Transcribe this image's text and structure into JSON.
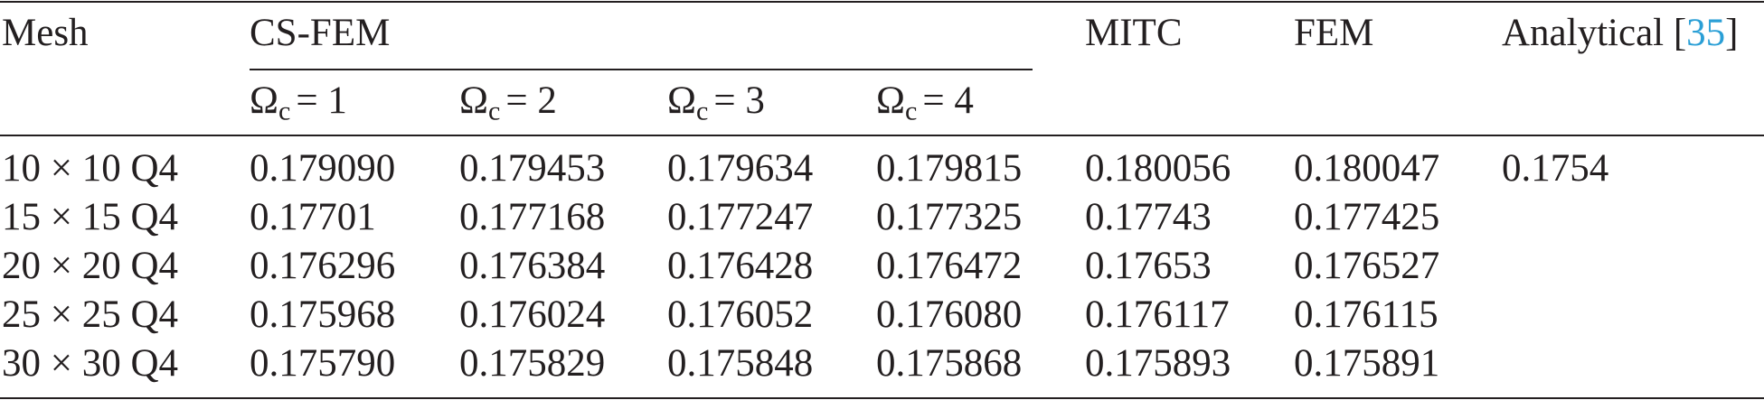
{
  "table": {
    "header": {
      "mesh": "Mesh",
      "group": "CS-FEM",
      "mitc": "MITC",
      "fem": "FEM",
      "analytical": {
        "text": "Analytical [",
        "ref": "35",
        "close": "]"
      }
    },
    "subheader": [
      {
        "symbol": "Ω",
        "sub": "c",
        "rest": "= 1"
      },
      {
        "symbol": "Ω",
        "sub": "c",
        "rest": "= 2"
      },
      {
        "symbol": "Ω",
        "sub": "c",
        "rest": "= 3"
      },
      {
        "symbol": "Ω",
        "sub": "c",
        "rest": "= 4"
      }
    ],
    "rows": [
      [
        "10 × 10 Q4",
        "0.179090",
        "0.179453",
        "0.179634",
        "0.179815",
        "0.180056",
        "0.180047",
        "0.1754"
      ],
      [
        "15 × 15 Q4",
        "0.17701",
        "0.177168",
        "0.177247",
        "0.177325",
        "0.17743",
        "0.177425"
      ],
      [
        "20 × 20 Q4",
        "0.176296",
        "0.176384",
        "0.176428",
        "0.176472",
        "0.17653",
        "0.176527"
      ],
      [
        "25 × 25 Q4",
        "0.175968",
        "0.176024",
        "0.176052",
        "0.176080",
        "0.176117",
        "0.176115"
      ],
      [
        "30 × 30 Q4",
        "0.175790",
        "0.175829",
        "0.175848",
        "0.175868",
        "0.175893",
        "0.175891"
      ]
    ]
  }
}
